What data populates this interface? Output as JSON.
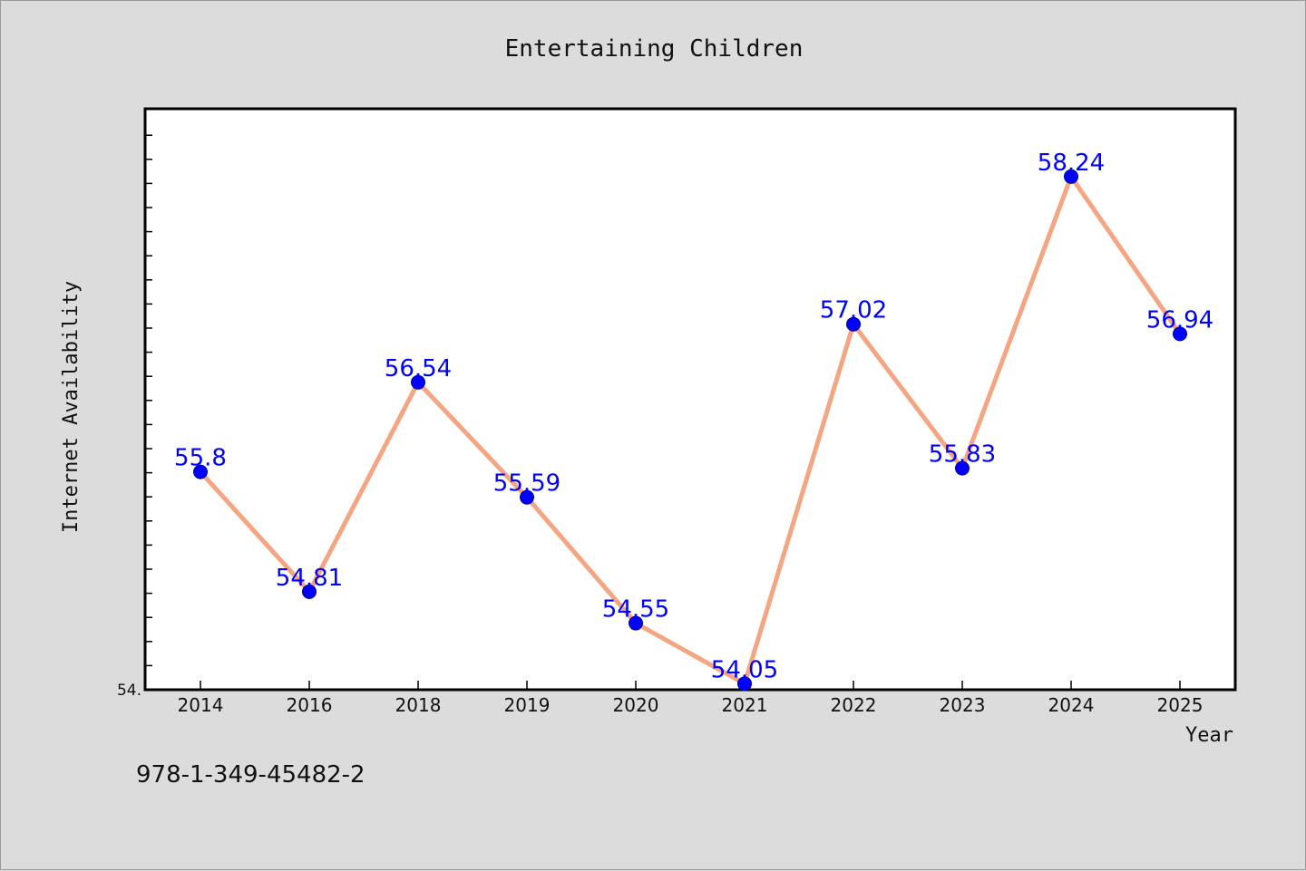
{
  "chart_data": {
    "type": "line",
    "title": "Entertaining Children",
    "xlabel": "Year",
    "ylabel": "Internet Availability",
    "categories": [
      "2014",
      "2016",
      "2018",
      "2019",
      "2020",
      "2021",
      "2022",
      "2023",
      "2024",
      "2025"
    ],
    "series": [
      {
        "values": [
          55.8,
          54.81,
          56.54,
          55.59,
          54.55,
          54.05,
          57.02,
          55.83,
          58.24,
          56.94
        ]
      }
    ],
    "data_labels": [
      "55.8",
      "54.81",
      "56.54",
      "55.59",
      "54.55",
      "54.05",
      "57.02",
      "55.83",
      "58.24",
      "56.94"
    ],
    "y_tick_labels": [
      {
        "value": 54.0,
        "label": "54."
      }
    ],
    "ylim": [
      54.0,
      58.8
    ],
    "grid": false,
    "colors": {
      "line": "#f4a582",
      "marker": "#0000ff",
      "label": "#0000ff",
      "background": "#dcdcdc",
      "plot_bg": "#ffffff"
    }
  },
  "annotation": "978-1-349-45482-2"
}
